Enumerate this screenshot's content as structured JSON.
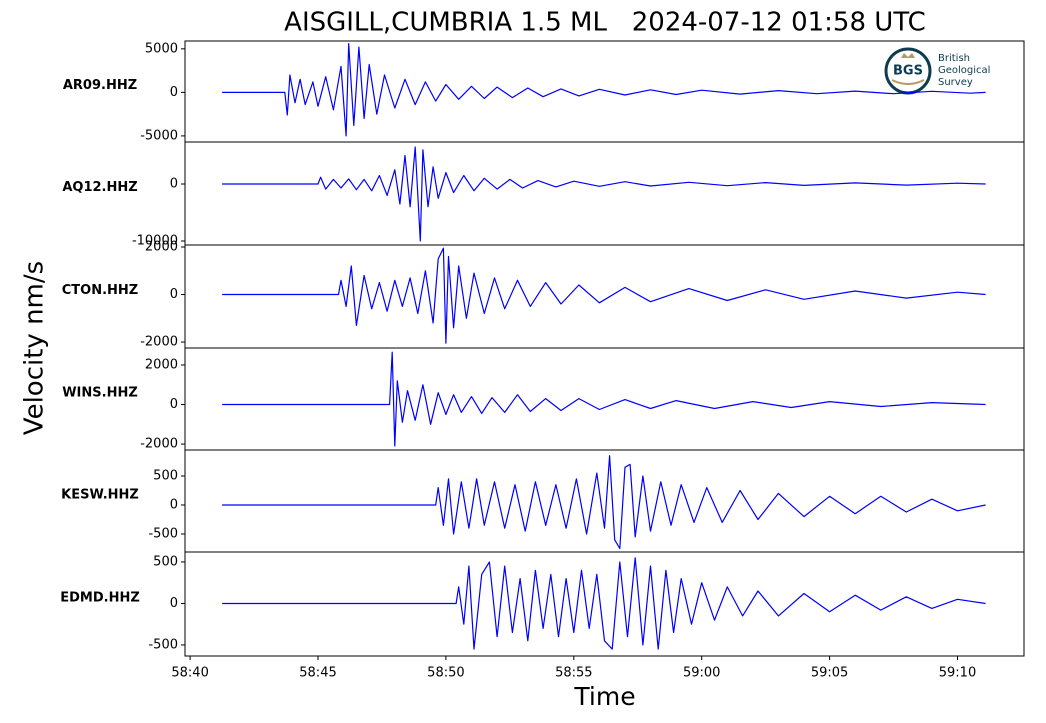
{
  "title": "AISGILL,CUMBRIA 1.5 ML   2024-07-12 01:58 UTC",
  "ylabel": "Velocity nm/s",
  "xlabel": "Time",
  "logo": {
    "badge": "BGS",
    "lines": [
      "British",
      "Geological",
      "Survey"
    ]
  },
  "chart_data": [
    {
      "type": "line",
      "label": "AR09.HHZ",
      "color": "#0000ff",
      "xlim": [
        39.8,
        72.6
      ],
      "ylim": [
        -5700,
        5900
      ],
      "yticks": [
        -5000,
        0,
        5000
      ],
      "x": [
        41.25,
        43.7,
        43.8,
        43.9,
        44.1,
        44.3,
        44.5,
        44.8,
        45.0,
        45.3,
        45.6,
        45.9,
        46.1,
        46.2,
        46.4,
        46.6,
        46.8,
        47.0,
        47.3,
        47.6,
        48.0,
        48.4,
        48.8,
        49.2,
        49.6,
        50.0,
        50.5,
        51.0,
        51.5,
        52.0,
        52.6,
        53.2,
        53.8,
        54.5,
        55.2,
        56.0,
        57.0,
        58.0,
        59.0,
        60.0,
        61.5,
        63.0,
        64.5,
        66.0,
        67.5,
        69.0,
        70.5,
        71.1
      ],
      "values": [
        0,
        0,
        -2600,
        2000,
        -1200,
        1500,
        -1400,
        1200,
        -1600,
        1800,
        -2000,
        3000,
        -5000,
        5600,
        -3800,
        5200,
        -3000,
        3200,
        -2500,
        2000,
        -1800,
        1500,
        -1400,
        1200,
        -1000,
        900,
        -800,
        700,
        -700,
        600,
        -600,
        500,
        -500,
        400,
        -400,
        350,
        -300,
        300,
        -250,
        250,
        -200,
        200,
        -150,
        150,
        -150,
        120,
        -100,
        0
      ]
    },
    {
      "type": "line",
      "label": "AQ12.HHZ",
      "color": "#0000ff",
      "xlim": [
        39.8,
        72.6
      ],
      "ylim": [
        -10700,
        7370
      ],
      "yticks": [
        -10000,
        0
      ],
      "x": [
        41.25,
        45.0,
        45.1,
        45.3,
        45.6,
        45.9,
        46.2,
        46.5,
        46.8,
        47.1,
        47.4,
        47.7,
        48.0,
        48.2,
        48.4,
        48.6,
        48.8,
        49.0,
        49.1,
        49.3,
        49.5,
        49.7,
        50.0,
        50.3,
        50.7,
        51.1,
        51.5,
        52.0,
        52.5,
        53.0,
        53.6,
        54.3,
        55.0,
        56.0,
        57.0,
        58.0,
        59.5,
        61.0,
        62.5,
        64.0,
        66.0,
        68.0,
        70.0,
        71.1
      ],
      "values": [
        0,
        0,
        1200,
        -900,
        800,
        -700,
        900,
        -1000,
        800,
        -1200,
        1500,
        -2000,
        2500,
        -3500,
        5000,
        -4000,
        6500,
        -10000,
        6000,
        -4000,
        3000,
        -2500,
        2000,
        -1500,
        1500,
        -1200,
        1000,
        -900,
        800,
        -700,
        600,
        -500,
        500,
        -400,
        400,
        -350,
        300,
        -300,
        250,
        -250,
        200,
        -200,
        150,
        0
      ]
    },
    {
      "type": "line",
      "label": "CTON.HHZ",
      "color": "#0000ff",
      "xlim": [
        39.8,
        72.6
      ],
      "ylim": [
        -2250,
        2084
      ],
      "yticks": [
        -2000,
        0,
        2000
      ],
      "x": [
        41.25,
        45.8,
        45.9,
        46.1,
        46.3,
        46.5,
        46.8,
        47.1,
        47.4,
        47.7,
        48.0,
        48.3,
        48.6,
        48.9,
        49.2,
        49.5,
        49.7,
        49.9,
        50.0,
        50.1,
        50.3,
        50.5,
        50.8,
        51.1,
        51.5,
        51.9,
        52.3,
        52.8,
        53.3,
        53.9,
        54.5,
        55.2,
        56.0,
        57.0,
        58.0,
        59.5,
        61.0,
        62.5,
        64.0,
        66.0,
        68.0,
        70.0,
        71.1
      ],
      "values": [
        0,
        0,
        600,
        -500,
        1200,
        -1300,
        800,
        -600,
        500,
        -700,
        600,
        -500,
        700,
        -800,
        1000,
        -1200,
        1500,
        1950,
        -2050,
        1600,
        -1400,
        1200,
        -1000,
        900,
        -800,
        700,
        -600,
        600,
        -500,
        500,
        -400,
        400,
        -350,
        300,
        -300,
        250,
        -250,
        200,
        -200,
        150,
        -150,
        100,
        0
      ]
    },
    {
      "type": "line",
      "label": "WINS.HHZ",
      "color": "#0000ff",
      "xlim": [
        39.8,
        72.6
      ],
      "ylim": [
        -2300,
        2860
      ],
      "yticks": [
        -2000,
        0,
        2000
      ],
      "x": [
        41.25,
        47.8,
        47.9,
        48.0,
        48.1,
        48.3,
        48.5,
        48.8,
        49.1,
        49.4,
        49.7,
        50.0,
        50.3,
        50.6,
        51.0,
        51.4,
        51.8,
        52.3,
        52.8,
        53.3,
        53.9,
        54.5,
        55.2,
        56.0,
        57.0,
        58.0,
        59.0,
        60.5,
        62.0,
        63.5,
        65.0,
        67.0,
        69.0,
        71.1
      ],
      "values": [
        0,
        0,
        2650,
        -2100,
        1200,
        -900,
        700,
        -800,
        1000,
        -1000,
        600,
        -500,
        500,
        -400,
        400,
        -450,
        350,
        -400,
        500,
        -350,
        300,
        -300,
        300,
        -250,
        250,
        -200,
        200,
        -200,
        150,
        -150,
        150,
        -100,
        100,
        0
      ]
    },
    {
      "type": "line",
      "label": "KESW.HHZ",
      "color": "#0000ff",
      "xlim": [
        39.8,
        72.6
      ],
      "ylim": [
        -810,
        948
      ],
      "yticks": [
        -500,
        0,
        500
      ],
      "x": [
        41.25,
        49.6,
        49.7,
        49.9,
        50.1,
        50.3,
        50.6,
        50.9,
        51.2,
        51.5,
        51.9,
        52.3,
        52.7,
        53.1,
        53.5,
        53.9,
        54.3,
        54.7,
        55.1,
        55.5,
        55.9,
        56.2,
        56.4,
        56.6,
        56.8,
        57.0,
        57.2,
        57.4,
        57.7,
        58.0,
        58.4,
        58.8,
        59.2,
        59.7,
        60.2,
        60.8,
        61.5,
        62.2,
        63.0,
        64.0,
        65.0,
        66.0,
        67.0,
        68.0,
        69.0,
        70.0,
        71.1
      ],
      "values": [
        0,
        0,
        300,
        -350,
        450,
        -500,
        400,
        -400,
        450,
        -350,
        400,
        -400,
        350,
        -450,
        400,
        -350,
        350,
        -400,
        450,
        -500,
        550,
        -400,
        850,
        -600,
        -750,
        650,
        700,
        -550,
        500,
        -450,
        400,
        -350,
        350,
        -300,
        300,
        -300,
        250,
        -250,
        200,
        -200,
        150,
        -150,
        150,
        -120,
        100,
        -100,
        0
      ]
    },
    {
      "type": "line",
      "label": "EDMD.HHZ",
      "color": "#0000ff",
      "xlim": [
        39.8,
        72.6
      ],
      "ylim": [
        -633,
        620
      ],
      "yticks": [
        -500,
        0,
        500
      ],
      "xticks": [
        {
          "value": 40,
          "label": "58:40"
        },
        {
          "value": 45,
          "label": "58:45"
        },
        {
          "value": 50,
          "label": "58:50"
        },
        {
          "value": 55,
          "label": "58:55"
        },
        {
          "value": 60,
          "label": "59:00"
        },
        {
          "value": 65,
          "label": "59:05"
        },
        {
          "value": 70,
          "label": "59:10"
        }
      ],
      "x": [
        41.25,
        50.4,
        50.5,
        50.7,
        50.9,
        51.1,
        51.4,
        51.7,
        52.0,
        52.3,
        52.6,
        52.9,
        53.2,
        53.5,
        53.8,
        54.1,
        54.4,
        54.7,
        55.0,
        55.3,
        55.6,
        55.9,
        56.2,
        56.5,
        56.8,
        57.1,
        57.4,
        57.7,
        58.0,
        58.3,
        58.6,
        58.9,
        59.2,
        59.6,
        60.0,
        60.5,
        61.0,
        61.6,
        62.2,
        63.0,
        64.0,
        65.0,
        66.0,
        67.0,
        68.0,
        69.0,
        70.0,
        71.1
      ],
      "values": [
        0,
        0,
        200,
        -250,
        450,
        -550,
        350,
        500,
        -400,
        450,
        -350,
        300,
        -450,
        400,
        -300,
        350,
        -400,
        300,
        -350,
        400,
        -300,
        350,
        -450,
        -550,
        500,
        -400,
        550,
        -500,
        450,
        -550,
        400,
        -350,
        300,
        -250,
        250,
        -200,
        200,
        -150,
        150,
        -150,
        120,
        -100,
        100,
        -80,
        80,
        -60,
        50,
        0
      ]
    }
  ]
}
